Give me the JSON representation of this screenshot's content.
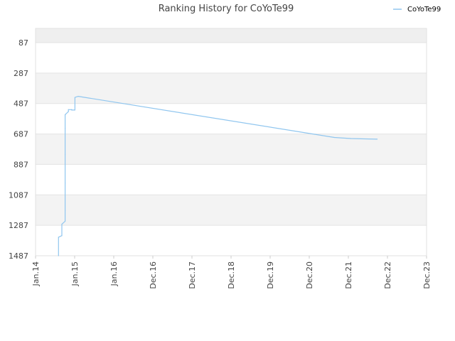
{
  "chart_data": {
    "type": "line",
    "title": "Ranking History for CoYoTe99",
    "xlabel": "",
    "ylabel": "",
    "x_ticks": [
      "Jan.14",
      "Jan.15",
      "Jan.16",
      "Dec.16",
      "Dec.17",
      "Dec.18",
      "Dec.19",
      "Dec.20",
      "Dec.21",
      "Dec.22",
      "Dec.23"
    ],
    "y_ticks": [
      "87",
      "287",
      "487",
      "687",
      "887",
      "1087",
      "1287",
      "1487"
    ],
    "y_tick_values": [
      87,
      287,
      487,
      687,
      887,
      1087,
      1287,
      1487
    ],
    "ylim": [
      87,
      1487
    ],
    "y_inverted": true,
    "legend": {
      "position": "top-right"
    },
    "grid": true,
    "series": [
      {
        "name": "CoYoTe99",
        "color": "#90c6ef",
        "points": [
          {
            "x": "2014-08",
            "y": 1487
          },
          {
            "x": "2014-08",
            "y": 1365
          },
          {
            "x": "2014-09",
            "y": 1355
          },
          {
            "x": "2014-09",
            "y": 1280
          },
          {
            "x": "2014-10",
            "y": 1260
          },
          {
            "x": "2014-10",
            "y": 1190
          },
          {
            "x": "2014-10",
            "y": 1010
          },
          {
            "x": "2014-10",
            "y": 820
          },
          {
            "x": "2014-10",
            "y": 650
          },
          {
            "x": "2014-10",
            "y": 560
          },
          {
            "x": "2014-11",
            "y": 540
          },
          {
            "x": "2014-11",
            "y": 527
          },
          {
            "x": "2014-12",
            "y": 527
          },
          {
            "x": "2014-12",
            "y": 530
          },
          {
            "x": "2015-01",
            "y": 530
          },
          {
            "x": "2015-01",
            "y": 447
          },
          {
            "x": "2015-02",
            "y": 440
          },
          {
            "x": "2021-08",
            "y": 710
          },
          {
            "x": "2022-01",
            "y": 717
          },
          {
            "x": "2022-09",
            "y": 721
          }
        ]
      }
    ]
  }
}
